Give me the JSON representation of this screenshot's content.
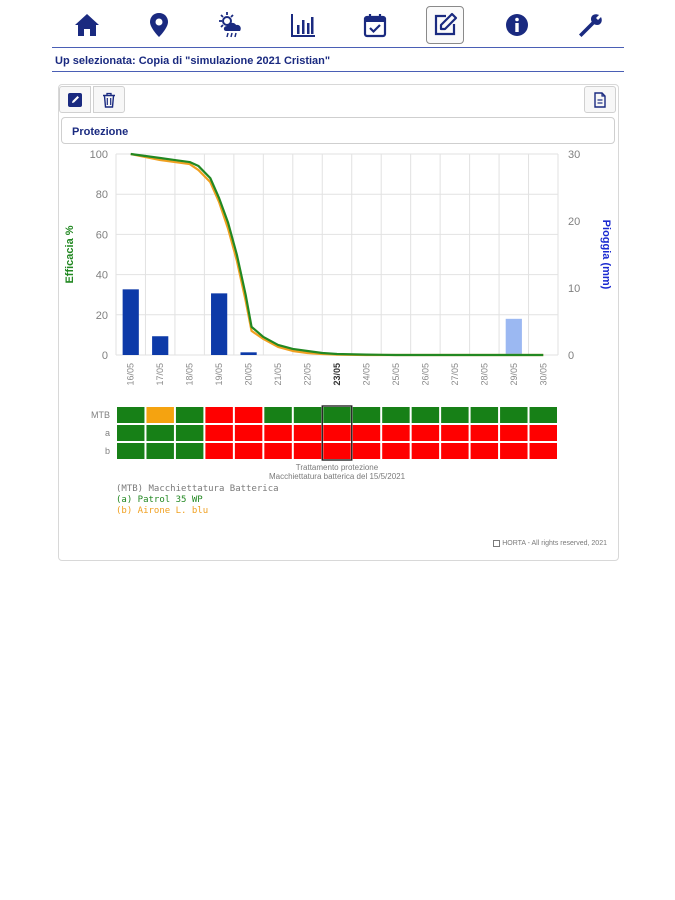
{
  "nav": {
    "items": [
      {
        "id": "home",
        "icon": "home-icon"
      },
      {
        "id": "location",
        "icon": "map-marker-icon"
      },
      {
        "id": "weather",
        "icon": "weather-cloud-sun-rain-icon"
      },
      {
        "id": "charts",
        "icon": "bar-chart-icon"
      },
      {
        "id": "calendar",
        "icon": "calendar-check-icon"
      },
      {
        "id": "edit",
        "icon": "edit-icon",
        "active": true
      },
      {
        "id": "info",
        "icon": "info-icon"
      },
      {
        "id": "settings",
        "icon": "wrench-icon"
      }
    ],
    "accent": "#1a2a80"
  },
  "up_label": "Up selezionata: Copia di \"simulazione 2021 Cristian\"",
  "toolbar": {
    "edit_icon": "edit-icon",
    "delete_icon": "trash-icon",
    "doc_icon": "document-icon"
  },
  "section_title": "Protezione",
  "chart_data": {
    "type": "line",
    "dates": [
      "16/05",
      "17/05",
      "18/05",
      "19/05",
      "20/05",
      "21/05",
      "22/05",
      "23/05",
      "24/05",
      "25/05",
      "26/05",
      "27/05",
      "28/05",
      "29/05",
      "30/05"
    ],
    "highlight_date": "23/05",
    "left_axis": {
      "label": "Efficacia %",
      "ticks": [
        0,
        20,
        40,
        60,
        80,
        100
      ],
      "ylim": [
        0,
        100
      ],
      "color": "#228822"
    },
    "right_axis": {
      "label": "Pioggia (mm)",
      "ticks": [
        0,
        10,
        20,
        30
      ],
      "ylim": [
        0,
        30
      ],
      "color": "#1a2ad0"
    },
    "efficacy_series": [
      {
        "name": "a",
        "color": "#228822",
        "x": [
          0,
          0.5,
          1,
          1.5,
          2,
          2.3,
          2.7,
          3,
          3.3,
          3.6,
          3.9,
          4.1,
          4.5,
          5,
          5.5,
          6,
          6.5,
          7,
          8,
          9,
          10,
          11,
          12,
          13,
          14
        ],
        "y": [
          100,
          99,
          98,
          97,
          96,
          94,
          88,
          78,
          66,
          50,
          30,
          14,
          9,
          5,
          3,
          2,
          1,
          0.5,
          0.2,
          0,
          0,
          0,
          0,
          0,
          0
        ]
      },
      {
        "name": "b",
        "color": "#f0a020",
        "x": [
          0,
          0.5,
          1,
          1.5,
          2,
          2.3,
          2.7,
          3,
          3.3,
          3.6,
          3.9,
          4.1,
          4.5,
          5,
          5.5,
          6,
          6.5,
          7,
          8,
          9,
          10,
          11,
          12,
          13,
          14
        ],
        "y": [
          100,
          98.5,
          97,
          96,
          95,
          92,
          86,
          76,
          63,
          47,
          27,
          12,
          8,
          4,
          2,
          1,
          0.5,
          0.2,
          0,
          0,
          0,
          0,
          0,
          0,
          0
        ]
      }
    ],
    "rain": [
      {
        "date": "16/05",
        "value": 9.8,
        "color": "#0d3aa8"
      },
      {
        "date": "17/05",
        "value": 2.8,
        "color": "#0d3aa8"
      },
      {
        "date": "19/05",
        "value": 9.2,
        "color": "#0d3aa8"
      },
      {
        "date": "20/05",
        "value": 0.4,
        "color": "#0d3aa8"
      },
      {
        "date": "29/05",
        "value": 5.4,
        "color": "#9bb8f2"
      }
    ],
    "grid": true,
    "matrix": {
      "rows": [
        "MTB",
        "a",
        "b"
      ],
      "colors": {
        "G": "#178017",
        "O": "#f5a310",
        "R": "#ff0000"
      },
      "cells": [
        [
          "G",
          "O",
          "G",
          "R",
          "R",
          "G",
          "G",
          "G",
          "G",
          "G",
          "G",
          "G",
          "G",
          "G",
          "G"
        ],
        [
          "G",
          "G",
          "G",
          "R",
          "R",
          "R",
          "R",
          "R",
          "R",
          "R",
          "R",
          "R",
          "R",
          "R",
          "R"
        ],
        [
          "G",
          "G",
          "G",
          "R",
          "R",
          "R",
          "R",
          "R",
          "R",
          "R",
          "R",
          "R",
          "R",
          "R",
          "R"
        ]
      ]
    },
    "caption_1": "Trattamento protezione",
    "caption_2": "Macchiettatura batterica del 15/5/2021"
  },
  "legend": {
    "mtb": "(MTB) Macchiettatura Batterica",
    "a": "(a) Patrol 35 WP",
    "b": "(b) Airone L. blu"
  },
  "copyright": "HORTA - All rights reserved, 2021"
}
